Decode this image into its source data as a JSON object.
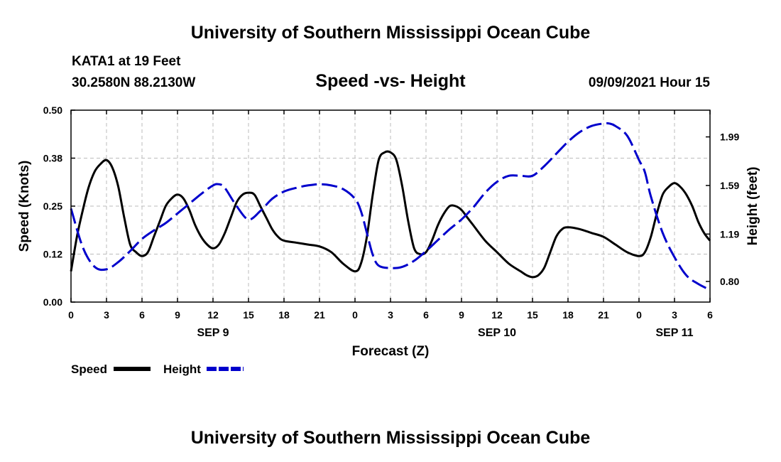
{
  "header": {
    "title": "University of Southern Mississippi Ocean Cube",
    "station": "KATA1 at 19 Feet",
    "location": "30.2580N  88.2130W",
    "date": "09/09/2021 Hour 15"
  },
  "footer": {
    "title": "University of Southern Mississippi Ocean Cube"
  },
  "legend": {
    "speed_label": "Speed",
    "height_label": "Height"
  },
  "colors": {
    "speed": "#000000",
    "height": "#0000cc",
    "grid": "#bbbbbb"
  },
  "chart_data": {
    "type": "line",
    "title": "Speed -vs- Height",
    "xlabel": "Forecast (Z)",
    "ylabel": "Speed (Knots)",
    "y2label": "Height (feet)",
    "xlim": [
      0,
      54
    ],
    "ylim": [
      0,
      0.5
    ],
    "y2lim": [
      0.63,
      2.21
    ],
    "yticks": [
      "0.00",
      "0.12",
      "0.25",
      "0.38",
      "0.50"
    ],
    "y2ticks": [
      "0.80",
      "1.19",
      "1.59",
      "1.99"
    ],
    "xticks": [
      {
        "x": 0,
        "label": "0"
      },
      {
        "x": 3,
        "label": "3"
      },
      {
        "x": 6,
        "label": "6"
      },
      {
        "x": 9,
        "label": "9"
      },
      {
        "x": 12,
        "label": "12"
      },
      {
        "x": 15,
        "label": "15"
      },
      {
        "x": 18,
        "label": "18"
      },
      {
        "x": 21,
        "label": "21"
      },
      {
        "x": 24,
        "label": "0"
      },
      {
        "x": 27,
        "label": "3"
      },
      {
        "x": 30,
        "label": "6"
      },
      {
        "x": 33,
        "label": "9"
      },
      {
        "x": 36,
        "label": "12"
      },
      {
        "x": 39,
        "label": "15"
      },
      {
        "x": 42,
        "label": "18"
      },
      {
        "x": 45,
        "label": "21"
      },
      {
        "x": 48,
        "label": "0"
      },
      {
        "x": 51,
        "label": "3"
      },
      {
        "x": 54,
        "label": "6"
      }
    ],
    "day_labels": [
      {
        "x": 12,
        "label": "SEP 9"
      },
      {
        "x": 36,
        "label": "SEP 10"
      },
      {
        "x": 51,
        "label": "SEP 11"
      }
    ],
    "series": [
      {
        "name": "Speed",
        "axis": "left",
        "x": [
          0,
          0.5,
          1,
          1.5,
          2,
          2.5,
          3,
          3.5,
          4,
          4.5,
          5,
          5.5,
          6,
          6.5,
          7,
          7.5,
          8,
          8.5,
          9,
          9.5,
          10,
          10.5,
          11,
          11.5,
          12,
          12.5,
          13,
          13.5,
          14,
          14.5,
          15,
          15.5,
          16,
          16.5,
          17,
          17.5,
          18,
          19,
          20,
          21,
          22,
          23,
          24,
          24.5,
          25,
          25.5,
          26,
          26.5,
          27,
          27.5,
          28,
          28.5,
          29,
          29.5,
          30,
          30.5,
          31,
          31.5,
          32,
          32.5,
          33,
          33.5,
          34,
          35,
          36,
          37,
          38,
          38.5,
          39,
          39.5,
          40,
          40.5,
          41,
          41.5,
          42,
          43,
          44,
          45,
          46,
          47,
          48,
          48.5,
          49,
          49.5,
          50,
          50.5,
          51,
          51.5,
          52,
          52.5,
          53,
          53.5,
          54
        ],
        "values": [
          0.08,
          0.17,
          0.24,
          0.3,
          0.34,
          0.36,
          0.37,
          0.35,
          0.3,
          0.22,
          0.15,
          0.13,
          0.12,
          0.13,
          0.17,
          0.21,
          0.25,
          0.27,
          0.28,
          0.27,
          0.24,
          0.2,
          0.17,
          0.15,
          0.14,
          0.15,
          0.18,
          0.22,
          0.26,
          0.28,
          0.285,
          0.28,
          0.25,
          0.22,
          0.19,
          0.17,
          0.16,
          0.155,
          0.15,
          0.145,
          0.13,
          0.1,
          0.08,
          0.1,
          0.17,
          0.28,
          0.37,
          0.39,
          0.39,
          0.37,
          0.3,
          0.21,
          0.14,
          0.125,
          0.13,
          0.16,
          0.2,
          0.23,
          0.25,
          0.25,
          0.24,
          0.22,
          0.2,
          0.16,
          0.13,
          0.1,
          0.08,
          0.07,
          0.065,
          0.07,
          0.09,
          0.13,
          0.17,
          0.19,
          0.195,
          0.19,
          0.18,
          0.17,
          0.15,
          0.13,
          0.12,
          0.13,
          0.17,
          0.23,
          0.28,
          0.3,
          0.31,
          0.3,
          0.28,
          0.25,
          0.21,
          0.18,
          0.16
        ]
      },
      {
        "name": "Height",
        "axis": "right",
        "x": [
          0,
          1,
          2,
          3,
          4,
          5,
          6,
          7,
          8,
          9,
          10,
          11,
          12,
          12.5,
          13,
          14,
          15,
          16,
          17,
          18,
          19,
          20,
          21,
          22,
          23,
          24,
          24.5,
          25,
          25.5,
          26,
          27,
          28,
          29,
          30,
          31,
          32,
          33,
          34,
          35,
          36,
          37,
          38,
          39,
          40,
          41,
          42,
          43,
          44,
          45,
          45.5,
          46,
          47,
          48,
          48.5,
          49,
          50,
          51,
          52,
          53,
          54
        ],
        "values": [
          1.4,
          1.08,
          0.92,
          0.9,
          0.96,
          1.05,
          1.15,
          1.22,
          1.28,
          1.36,
          1.44,
          1.52,
          1.59,
          1.6,
          1.57,
          1.42,
          1.31,
          1.38,
          1.48,
          1.54,
          1.57,
          1.59,
          1.6,
          1.59,
          1.56,
          1.48,
          1.38,
          1.2,
          1.02,
          0.93,
          0.91,
          0.92,
          0.97,
          1.05,
          1.14,
          1.23,
          1.31,
          1.41,
          1.53,
          1.62,
          1.67,
          1.67,
          1.67,
          1.75,
          1.85,
          1.95,
          2.03,
          2.08,
          2.1,
          2.1,
          2.08,
          2.0,
          1.8,
          1.7,
          1.5,
          1.2,
          1.0,
          0.85,
          0.78,
          0.73
        ]
      }
    ]
  }
}
